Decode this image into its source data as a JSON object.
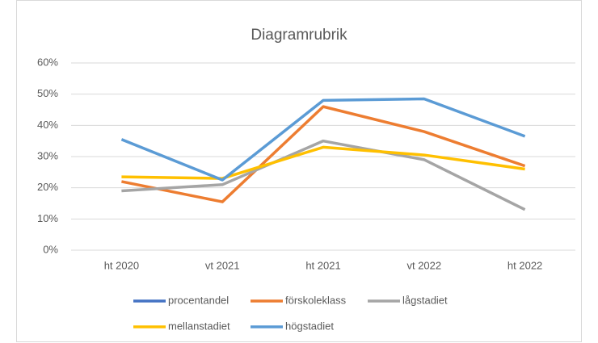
{
  "chart_data": {
    "type": "line",
    "title": "Diagramrubrik",
    "categories": [
      "ht 2020",
      "vt 2021",
      "ht 2021",
      "vt 2022",
      "ht 2022"
    ],
    "series": [
      {
        "name": "procentandel",
        "color": "#4472c4",
        "values": [
          null,
          null,
          null,
          null,
          null
        ]
      },
      {
        "name": "förskoleklass",
        "color": "#ed7d31",
        "values": [
          22,
          15.5,
          46,
          38,
          27
        ]
      },
      {
        "name": "lågstadiet",
        "color": "#a5a5a5",
        "values": [
          19,
          21,
          35,
          29,
          13
        ]
      },
      {
        "name": "mellanstadiet",
        "color": "#ffc000",
        "values": [
          23.5,
          23,
          33,
          30.5,
          26
        ]
      },
      {
        "name": "högstadiet",
        "color": "#5b9bd5",
        "values": [
          35.5,
          22.5,
          48,
          48.5,
          36.5
        ]
      }
    ],
    "ylim": [
      0,
      60
    ],
    "yticks": [
      {
        "value": 0,
        "label": "0%"
      },
      {
        "value": 10,
        "label": "10%"
      },
      {
        "value": 20,
        "label": "20%"
      },
      {
        "value": 30,
        "label": "30%"
      },
      {
        "value": 40,
        "label": "40%"
      },
      {
        "value": 50,
        "label": "50%"
      },
      {
        "value": 60,
        "label": "60%"
      }
    ],
    "grid": true,
    "legend": "bottom"
  }
}
